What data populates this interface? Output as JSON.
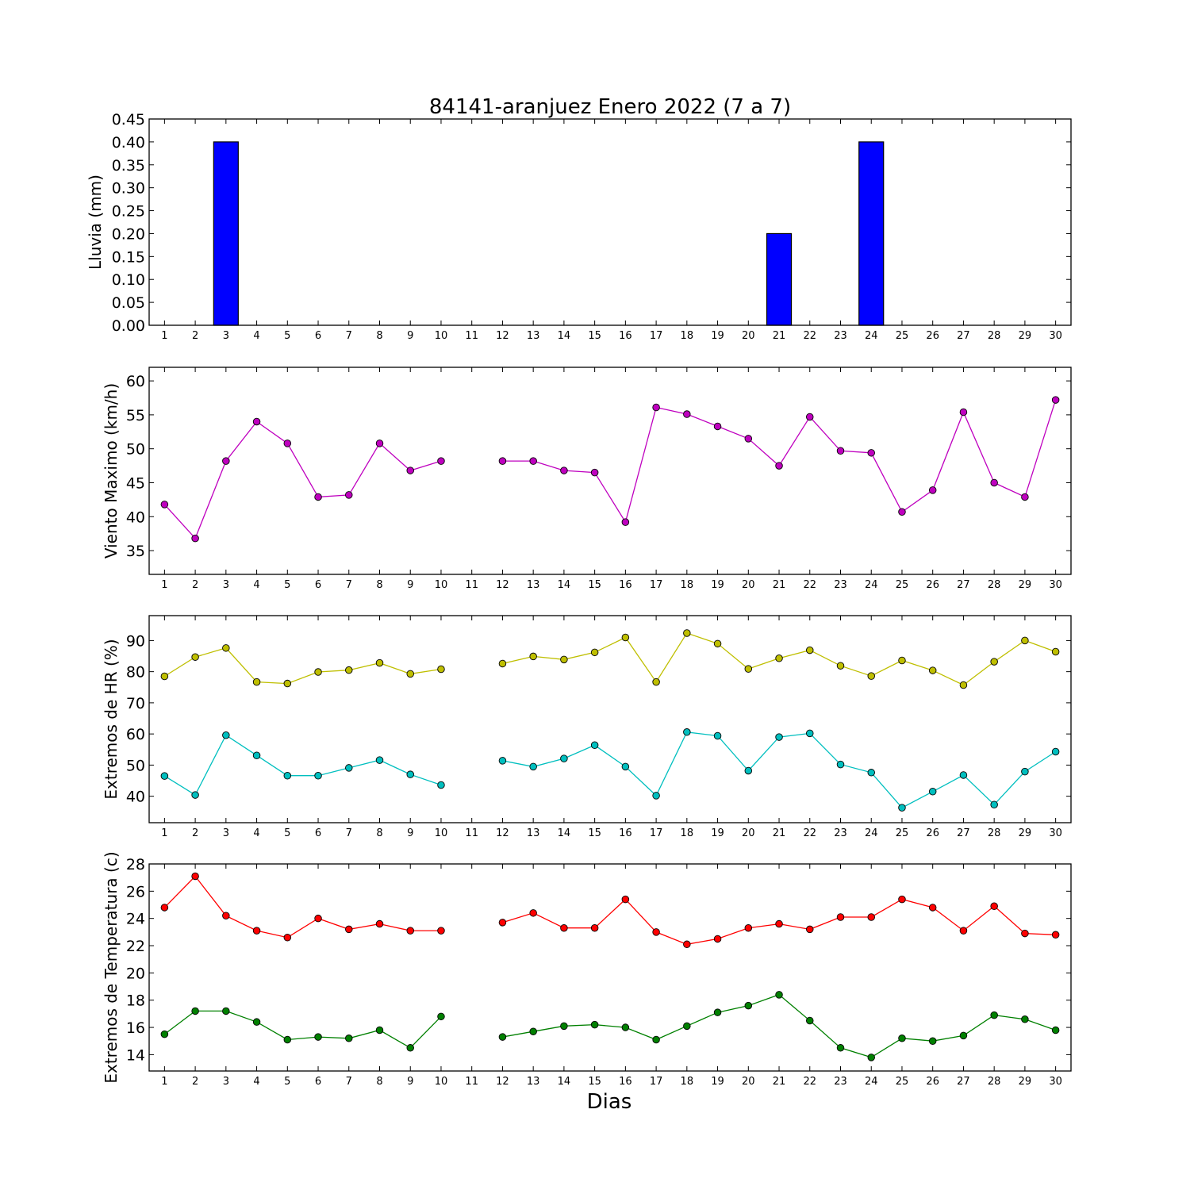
{
  "title": "84141-aranjuez Enero 2022  (7 a 7)",
  "xlabel": "Dias",
  "colors": {
    "rain": "#0000ff",
    "wind": "#bf00bf",
    "hr_max": "#bfbf00",
    "hr_min": "#00bfbf",
    "temp_max": "#ff0000",
    "temp_min": "#008000"
  },
  "chart_data": [
    {
      "type": "bar",
      "ylabel": "Lluvia (mm)",
      "ylim": [
        0,
        0.45
      ],
      "yticks": [
        "0.00",
        "0.05",
        "0.10",
        "0.15",
        "0.20",
        "0.25",
        "0.30",
        "0.35",
        "0.40",
        "0.45"
      ],
      "x": [
        1,
        2,
        3,
        4,
        5,
        6,
        7,
        8,
        9,
        10,
        11,
        12,
        13,
        14,
        15,
        16,
        17,
        18,
        19,
        20,
        21,
        22,
        23,
        24,
        25,
        26,
        27,
        28,
        29,
        30
      ],
      "series": [
        {
          "values": [
            0,
            0,
            0.4,
            0,
            0,
            0,
            0,
            0,
            0,
            0,
            0,
            0,
            0,
            0,
            0,
            0,
            0,
            0,
            0,
            0,
            0.2,
            0,
            0,
            0.4,
            0,
            0,
            0,
            0,
            0,
            0
          ]
        }
      ]
    },
    {
      "type": "line",
      "ylabel": "Viento Maximo (km/h)",
      "ylim": [
        31.5,
        62
      ],
      "yticks": [
        "35",
        "40",
        "45",
        "50",
        "55",
        "60"
      ],
      "x": [
        1,
        2,
        3,
        4,
        5,
        6,
        7,
        8,
        9,
        10,
        11,
        12,
        13,
        14,
        15,
        16,
        17,
        18,
        19,
        20,
        21,
        22,
        23,
        24,
        25,
        26,
        27,
        28,
        29,
        30
      ],
      "series": [
        {
          "values": [
            41.8,
            36.8,
            48.2,
            54.0,
            50.8,
            42.9,
            43.2,
            50.8,
            46.8,
            48.2,
            null,
            48.2,
            48.2,
            46.8,
            46.5,
            39.2,
            56.1,
            55.1,
            53.3,
            51.5,
            47.5,
            54.7,
            49.7,
            49.4,
            40.7,
            43.9,
            55.4,
            45.0,
            42.9,
            57.2
          ]
        }
      ]
    },
    {
      "type": "line",
      "ylabel": "Extremos de HR (%)",
      "ylim": [
        31.5,
        98
      ],
      "yticks": [
        "40",
        "50",
        "60",
        "70",
        "80",
        "90"
      ],
      "x": [
        1,
        2,
        3,
        4,
        5,
        6,
        7,
        8,
        9,
        10,
        11,
        12,
        13,
        14,
        15,
        16,
        17,
        18,
        19,
        20,
        21,
        22,
        23,
        24,
        25,
        26,
        27,
        28,
        29,
        30
      ],
      "series": [
        {
          "values": [
            78.5,
            84.7,
            87.6,
            76.7,
            76.2,
            79.9,
            80.5,
            82.8,
            79.3,
            80.8,
            null,
            82.6,
            84.9,
            83.9,
            86.2,
            91.0,
            76.7,
            92.4,
            89.0,
            80.9,
            84.3,
            86.9,
            81.9,
            78.6,
            83.6,
            80.4,
            75.7,
            83.2,
            90.0,
            86.4
          ]
        },
        {
          "values": [
            46.5,
            40.4,
            59.6,
            53.1,
            46.6,
            46.6,
            49.1,
            51.6,
            47.0,
            43.6,
            null,
            51.4,
            49.5,
            52.1,
            56.4,
            49.5,
            40.2,
            60.6,
            59.4,
            48.2,
            59.0,
            60.2,
            50.2,
            47.6,
            36.3,
            41.5,
            46.8,
            37.3,
            47.9,
            54.3
          ]
        }
      ]
    },
    {
      "type": "line",
      "ylabel": "Extremos de Temperatura (c)",
      "ylim": [
        12.8,
        28
      ],
      "yticks": [
        "14",
        "16",
        "18",
        "20",
        "22",
        "24",
        "26",
        "28"
      ],
      "x": [
        1,
        2,
        3,
        4,
        5,
        6,
        7,
        8,
        9,
        10,
        11,
        12,
        13,
        14,
        15,
        16,
        17,
        18,
        19,
        20,
        21,
        22,
        23,
        24,
        25,
        26,
        27,
        28,
        29,
        30
      ],
      "series": [
        {
          "values": [
            24.8,
            27.1,
            24.2,
            23.1,
            22.6,
            24.0,
            23.2,
            23.6,
            23.1,
            23.1,
            null,
            23.7,
            24.4,
            23.3,
            23.3,
            25.4,
            23.0,
            22.1,
            22.5,
            23.3,
            23.6,
            23.2,
            24.1,
            24.1,
            25.4,
            24.8,
            23.1,
            24.9,
            22.9,
            22.8
          ]
        },
        {
          "values": [
            15.5,
            17.2,
            17.2,
            16.4,
            15.1,
            15.3,
            15.2,
            15.8,
            14.5,
            16.8,
            null,
            15.3,
            15.7,
            16.1,
            16.2,
            16.0,
            15.1,
            16.1,
            17.1,
            17.6,
            18.4,
            16.5,
            14.5,
            13.8,
            15.2,
            15.0,
            15.4,
            16.9,
            16.6,
            15.8
          ]
        }
      ]
    }
  ]
}
